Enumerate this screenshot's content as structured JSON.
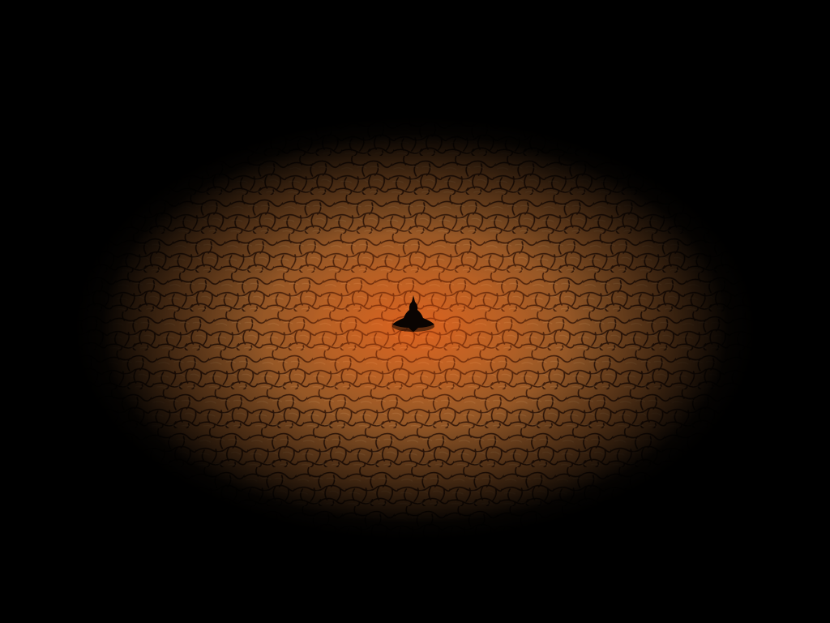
{
  "scene": {
    "view": "isometric-dungeon-floor",
    "ground_texture": "cracked-cobblestone",
    "light_source": "player-torch",
    "colors": {
      "background": "#000000",
      "light_core": "#e8561a",
      "light_mid": "#c46a26",
      "light_outer": "#6b4520",
      "stone_crack": "#2a1208",
      "hero_silhouette": "#0a0402"
    }
  },
  "player": {
    "icon": "hooded-hero-silhouette"
  }
}
